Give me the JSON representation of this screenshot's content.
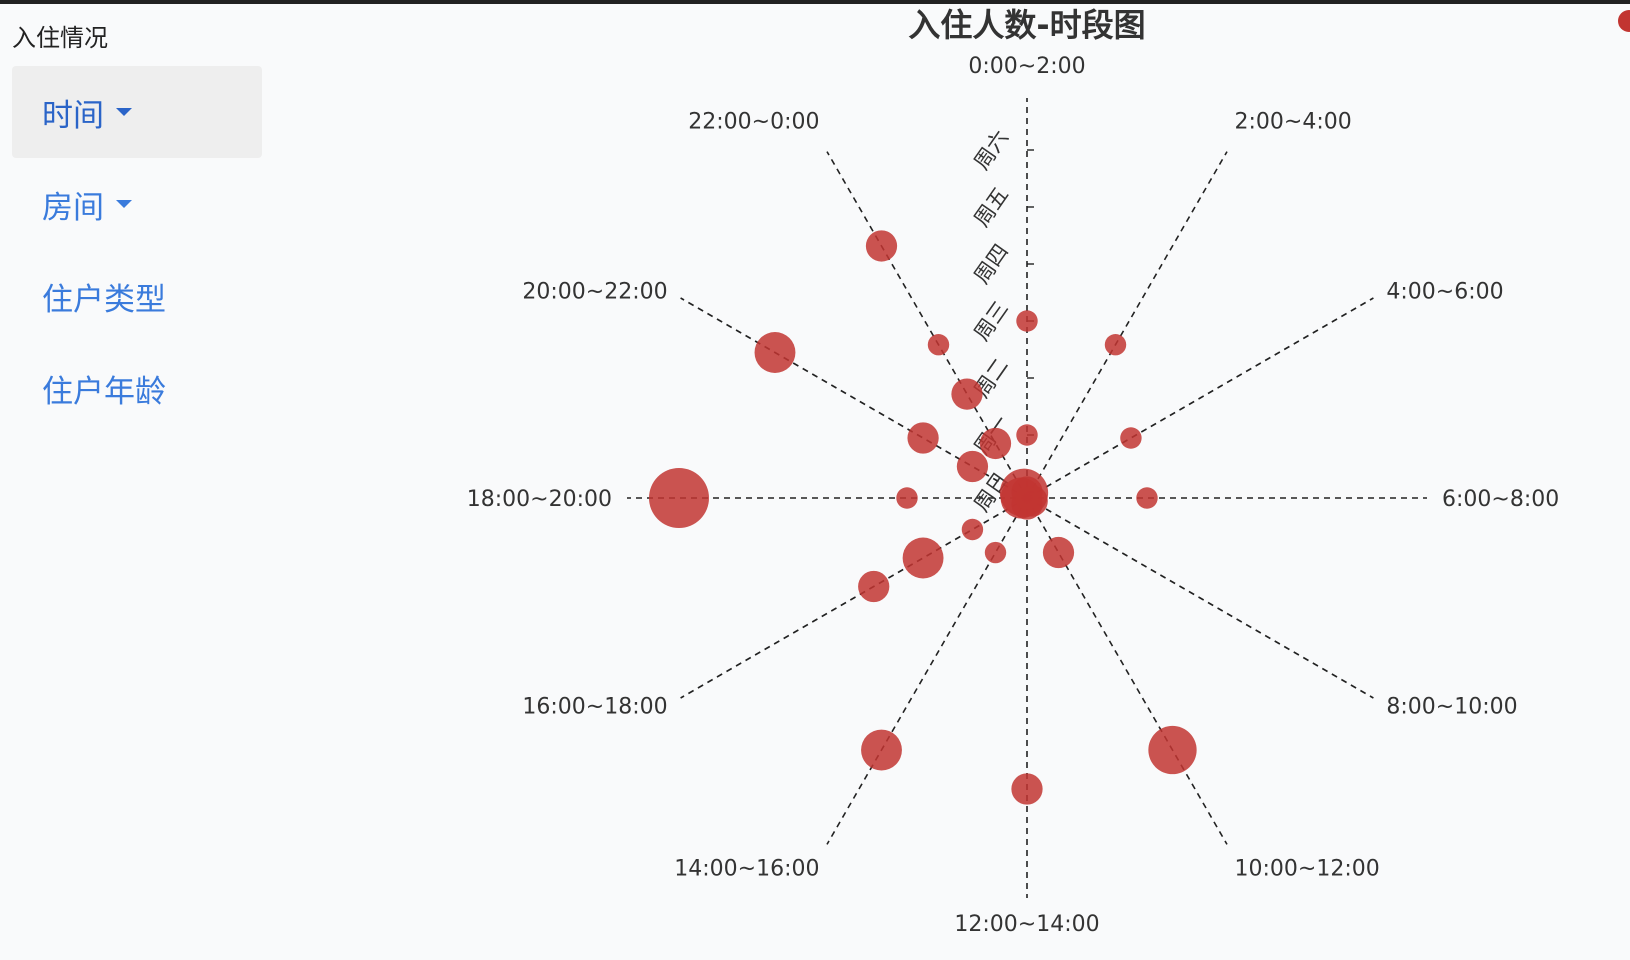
{
  "sidebar": {
    "title": "入住情况",
    "items": [
      {
        "label": "时间",
        "has_dropdown": true,
        "active": true
      },
      {
        "label": "房间",
        "has_dropdown": true,
        "active": false
      },
      {
        "label": "住户类型",
        "has_dropdown": false,
        "active": false
      },
      {
        "label": "住户年龄",
        "has_dropdown": false,
        "active": false
      }
    ]
  },
  "colors": {
    "accent": "#c23531",
    "menu_text": "#3a7bdc",
    "active_bg": "#eeeeee"
  },
  "chart_data": {
    "type": "scatter",
    "coordinate_system": "polar",
    "title": "入住人数-时段图",
    "angle_axis": [
      "0:00~2:00",
      "2:00~4:00",
      "4:00~6:00",
      "6:00~8:00",
      "8:00~10:00",
      "10:00~12:00",
      "12:00~14:00",
      "14:00~16:00",
      "16:00~18:00",
      "18:00~20:00",
      "20:00~22:00",
      "22:00~0:00"
    ],
    "radius_axis": [
      "周日",
      "周一",
      "周二",
      "周三",
      "周四",
      "周五",
      "周六"
    ],
    "series": [
      {
        "points": [
          {
            "time": "0:00~2:00",
            "day": "周日",
            "value": 3
          },
          {
            "time": "0:00~2:00",
            "day": "周一",
            "value": 1
          },
          {
            "time": "0:00~2:00",
            "day": "周三",
            "value": 1
          },
          {
            "time": "2:00~4:00",
            "day": "周三",
            "value": 1
          },
          {
            "time": "4:00~6:00",
            "day": "周二",
            "value": 1
          },
          {
            "time": "6:00~8:00",
            "day": "周二",
            "value": 1
          },
          {
            "time": "8:00~10:00",
            "day": "周日",
            "value": 3
          },
          {
            "time": "10:00~12:00",
            "day": "周一",
            "value": 3
          },
          {
            "time": "10:00~12:00",
            "day": "周五",
            "value": 9
          },
          {
            "time": "12:00~14:00",
            "day": "周日",
            "value": 3
          },
          {
            "time": "12:00~14:00",
            "day": "周五",
            "value": 3
          },
          {
            "time": "14:00~16:00",
            "day": "周一",
            "value": 1
          },
          {
            "time": "14:00~16:00",
            "day": "周五",
            "value": 6
          },
          {
            "time": "16:00~18:00",
            "day": "周一",
            "value": 1
          },
          {
            "time": "16:00~18:00",
            "day": "周二",
            "value": 6
          },
          {
            "time": "16:00~18:00",
            "day": "周三",
            "value": 3
          },
          {
            "time": "18:00~20:00",
            "day": "周日",
            "value": 6
          },
          {
            "time": "18:00~20:00",
            "day": "周二",
            "value": 1
          },
          {
            "time": "18:00~20:00",
            "day": "周六",
            "value": 15
          },
          {
            "time": "20:00~22:00",
            "day": "周一",
            "value": 3
          },
          {
            "time": "20:00~22:00",
            "day": "周二",
            "value": 3
          },
          {
            "time": "20:00~22:00",
            "day": "周五",
            "value": 6
          },
          {
            "time": "22:00~0:00",
            "day": "周日",
            "value": 9
          },
          {
            "time": "22:00~0:00",
            "day": "周一",
            "value": 3
          },
          {
            "time": "22:00~0:00",
            "day": "周二",
            "value": 3
          },
          {
            "time": "22:00~0:00",
            "day": "周三",
            "value": 1
          },
          {
            "time": "22:00~0:00",
            "day": "周五",
            "value": 3
          }
        ]
      }
    ]
  }
}
